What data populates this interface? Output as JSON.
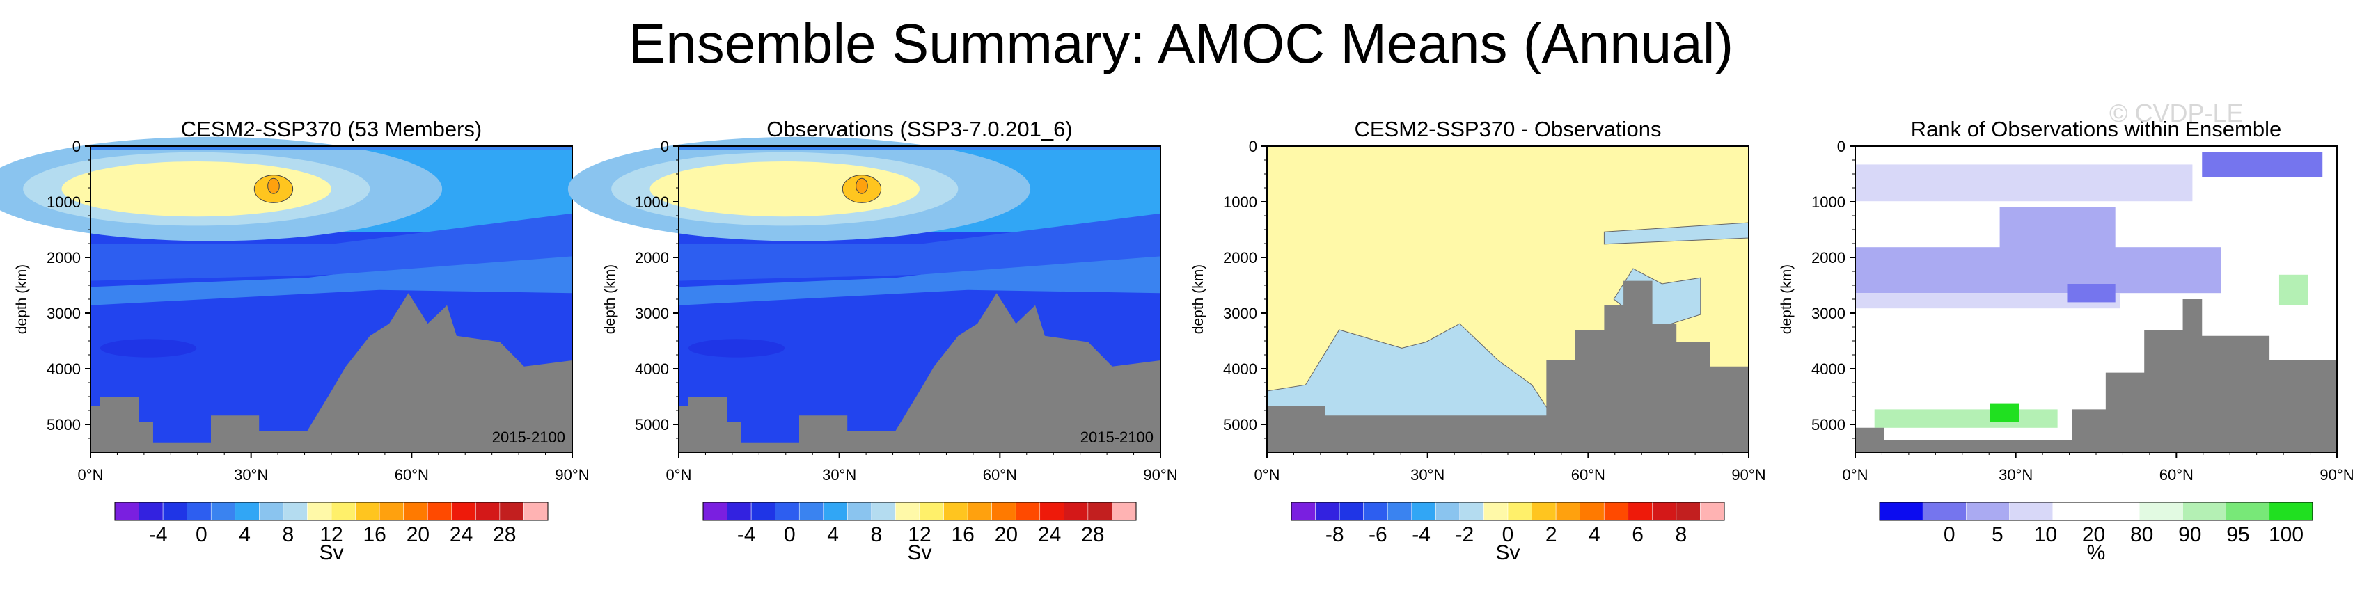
{
  "title": "Ensemble Summary: AMOC Means (Annual)",
  "watermark": "© CVDP-LE",
  "chart_data": [
    {
      "type": "heatmap",
      "title": "CESM2-SSP370 (53 Members)",
      "xlabel": "",
      "ylabel": "depth (km)",
      "xlim": [
        0,
        90
      ],
      "ylim": [
        5500,
        0
      ],
      "xticks": [
        "0°N",
        "30°N",
        "60°N",
        "90°N"
      ],
      "yticks": [
        "0",
        "1000",
        "2000",
        "3000",
        "4000",
        "5000"
      ],
      "annotation": "2015-2100",
      "colorbar": {
        "labels": [
          "-4",
          "0",
          "4",
          "8",
          "12",
          "16",
          "20",
          "24",
          "28"
        ],
        "units": "Sv",
        "colors": [
          "#7a1fe0",
          "#3322e0",
          "#1f35e6",
          "#2d5ef0",
          "#3a83f0",
          "#31a6f5",
          "#8ac4ef",
          "#b4dcf0",
          "#fff9a8",
          "#fff06a",
          "#ffc51f",
          "#ffa10e",
          "#ff7a00",
          "#ff4a00",
          "#ee1a0a",
          "#d41818",
          "#c21f1f",
          "#ffb3b3"
        ]
      },
      "panel": "cesm"
    },
    {
      "type": "heatmap",
      "title": "Observations (SSP3-7.0.201_6)",
      "xlabel": "",
      "ylabel": "depth (km)",
      "xlim": [
        0,
        90
      ],
      "ylim": [
        5500,
        0
      ],
      "xticks": [
        "0°N",
        "30°N",
        "60°N",
        "90°N"
      ],
      "yticks": [
        "0",
        "1000",
        "2000",
        "3000",
        "4000",
        "5000"
      ],
      "annotation": "2015-2100",
      "colorbar": {
        "labels": [
          "-4",
          "0",
          "4",
          "8",
          "12",
          "16",
          "20",
          "24",
          "28"
        ],
        "units": "Sv",
        "colors": [
          "#7a1fe0",
          "#3322e0",
          "#1f35e6",
          "#2d5ef0",
          "#3a83f0",
          "#31a6f5",
          "#8ac4ef",
          "#b4dcf0",
          "#fff9a8",
          "#fff06a",
          "#ffc51f",
          "#ffa10e",
          "#ff7a00",
          "#ff4a00",
          "#ee1a0a",
          "#d41818",
          "#c21f1f",
          "#ffb3b3"
        ]
      },
      "panel": "obs"
    },
    {
      "type": "heatmap",
      "title": "CESM2-SSP370 - Observations",
      "xlabel": "",
      "ylabel": "depth (km)",
      "xlim": [
        0,
        90
      ],
      "ylim": [
        5500,
        0
      ],
      "xticks": [
        "0°N",
        "30°N",
        "60°N",
        "90°N"
      ],
      "yticks": [
        "0",
        "1000",
        "2000",
        "3000",
        "4000",
        "5000"
      ],
      "annotation": "",
      "colorbar": {
        "labels": [
          "-8",
          "-6",
          "-4",
          "-2",
          "0",
          "2",
          "4",
          "6",
          "8"
        ],
        "units": "Sv",
        "colors": [
          "#7a1fe0",
          "#3322e0",
          "#1f35e6",
          "#2d5ef0",
          "#3a83f0",
          "#31a6f5",
          "#8ac4ef",
          "#b4dcf0",
          "#fff9a8",
          "#fff06a",
          "#ffc51f",
          "#ffa10e",
          "#ff7a00",
          "#ff4a00",
          "#ee1a0a",
          "#d41818",
          "#c21f1f",
          "#ffb3b3"
        ]
      },
      "panel": "diff"
    },
    {
      "type": "heatmap",
      "title": "Rank of Observations within Ensemble",
      "xlabel": "",
      "ylabel": "depth (km)",
      "xlim": [
        0,
        90
      ],
      "ylim": [
        5500,
        0
      ],
      "xticks": [
        "0°N",
        "30°N",
        "60°N",
        "90°N"
      ],
      "yticks": [
        "0",
        "1000",
        "2000",
        "3000",
        "4000",
        "5000"
      ],
      "annotation": "",
      "colorbar": {
        "labels": [
          "0",
          "5",
          "10",
          "20",
          "80",
          "90",
          "95",
          "100"
        ],
        "units": "%",
        "colors": [
          "#0c0cf0",
          "#7575ee",
          "#aaaaf2",
          "#d8d8f8",
          "#ffffff",
          "#ffffff",
          "#e2fae2",
          "#b4f0b4",
          "#78e878",
          "#20e020"
        ]
      },
      "panel": "rank"
    }
  ]
}
